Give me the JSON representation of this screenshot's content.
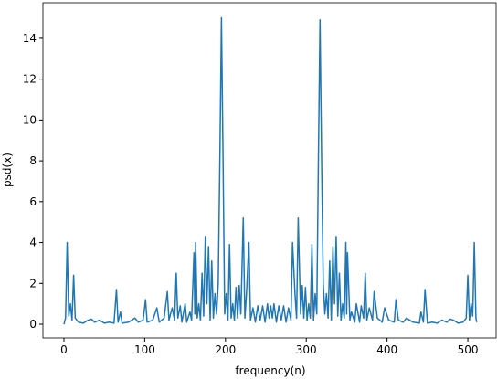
{
  "chart_data": {
    "type": "line",
    "xlabel": "frequency(n)",
    "ylabel": "psd(x)",
    "xlim": [
      -26,
      535
    ],
    "ylim": [
      -0.67,
      15.74
    ],
    "xticks": [
      0,
      100,
      200,
      300,
      400,
      500
    ],
    "yticks": [
      0,
      2,
      4,
      6,
      8,
      10,
      12,
      14
    ],
    "series": [
      {
        "color": "#1f77b4",
        "x": [
          0,
          2,
          4,
          6,
          8,
          10,
          12,
          14,
          18,
          24,
          30,
          34,
          38,
          44,
          50,
          56,
          62,
          65,
          67,
          70,
          72,
          80,
          88,
          92,
          98,
          101,
          103,
          110,
          115,
          118,
          124,
          128,
          130,
          134,
          137,
          139,
          141,
          144,
          146,
          150,
          152,
          156,
          158,
          161,
          162,
          163,
          165,
          167,
          169,
          171,
          173,
          175,
          177,
          179,
          181,
          183,
          185,
          187,
          189,
          191,
          193,
          195,
          197,
          199,
          201,
          203,
          205,
          207,
          209,
          211,
          213,
          215,
          217,
          219,
          222,
          224,
          226,
          229,
          231,
          234,
          237,
          240,
          243,
          246,
          249,
          252,
          254,
          256,
          258,
          260,
          263,
          266,
          269,
          272,
          275,
          278,
          281,
          283,
          286,
          288,
          290,
          293,
          295,
          297,
          299,
          301,
          303,
          305,
          307,
          309,
          311,
          313,
          315,
          317,
          319,
          321,
          323,
          325,
          327,
          329,
          331,
          333,
          335,
          337,
          339,
          341,
          343,
          345,
          347,
          349,
          350,
          351,
          354,
          356,
          360,
          362,
          366,
          368,
          371,
          373,
          375,
          378,
          382,
          384,
          388,
          394,
          397,
          402,
          409,
          411,
          414,
          420,
          424,
          432,
          440,
          442,
          445,
          447,
          450,
          456,
          462,
          468,
          474,
          478,
          482,
          488,
          494,
          498,
          500,
          502,
          504,
          506,
          508,
          510,
          511
        ],
        "values": [
          0.0,
          0.3,
          4.0,
          0.4,
          1.0,
          0.2,
          2.4,
          0.3,
          0.1,
          0.05,
          0.2,
          0.25,
          0.1,
          0.2,
          0.05,
          0.1,
          0.05,
          1.7,
          0.1,
          0.6,
          0.05,
          0.1,
          0.3,
          0.1,
          0.2,
          1.2,
          0.1,
          0.2,
          0.8,
          0.1,
          0.3,
          1.6,
          0.2,
          0.8,
          0.2,
          2.5,
          0.3,
          0.9,
          0.1,
          1.0,
          0.1,
          0.6,
          0.2,
          3.5,
          0.5,
          4.0,
          0.3,
          1.0,
          0.2,
          2.5,
          0.4,
          4.3,
          1.0,
          3.8,
          0.2,
          3.1,
          0.3,
          1.5,
          0.5,
          2.0,
          8.0,
          15.0,
          8.0,
          0.5,
          1.5,
          0.2,
          3.9,
          0.3,
          1.0,
          0.2,
          1.8,
          0.3,
          1.9,
          0.5,
          5.2,
          0.3,
          1.5,
          4.0,
          0.2,
          0.8,
          0.1,
          0.9,
          0.2,
          0.9,
          0.1,
          1.0,
          0.3,
          0.9,
          0.3,
          1.0,
          0.1,
          0.9,
          0.2,
          0.9,
          0.1,
          0.8,
          0.2,
          4.0,
          1.5,
          0.3,
          5.2,
          0.5,
          1.9,
          0.3,
          1.8,
          0.2,
          1.0,
          0.3,
          3.9,
          0.2,
          1.5,
          0.5,
          8.0,
          14.9,
          8.0,
          2.0,
          0.5,
          1.5,
          0.3,
          3.1,
          0.2,
          3.8,
          1.0,
          4.3,
          0.4,
          2.5,
          0.2,
          1.0,
          0.3,
          4.0,
          0.5,
          3.5,
          0.2,
          0.6,
          0.1,
          1.0,
          0.1,
          0.9,
          0.3,
          2.5,
          0.2,
          0.8,
          0.2,
          1.6,
          0.3,
          0.1,
          0.8,
          0.2,
          0.1,
          1.2,
          0.2,
          0.1,
          0.3,
          0.1,
          0.05,
          0.6,
          0.1,
          1.7,
          0.05,
          0.1,
          0.05,
          0.2,
          0.1,
          0.25,
          0.2,
          0.05,
          0.1,
          0.3,
          2.4,
          0.2,
          1.0,
          0.4,
          4.0,
          0.3,
          0.1
        ]
      }
    ]
  }
}
